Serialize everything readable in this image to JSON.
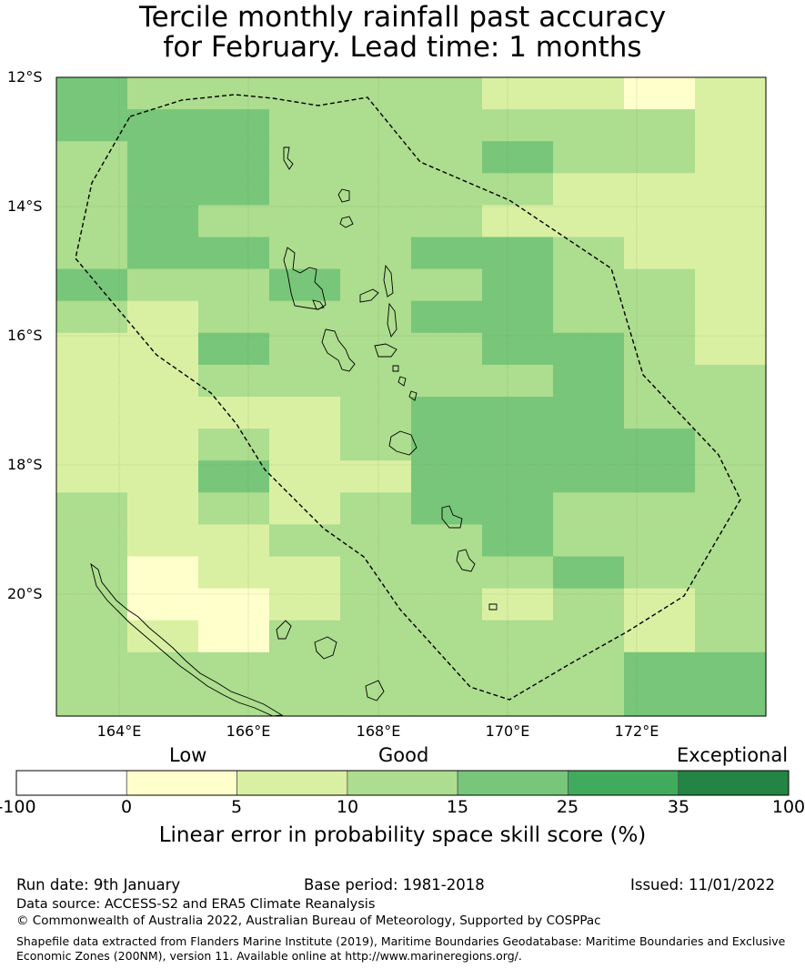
{
  "title": {
    "line1": "Tercile monthly rainfall past accuracy",
    "line2": "for February. Lead time: 1 months"
  },
  "map": {
    "lat_labels": [
      "12°S",
      "14°S",
      "16°S",
      "18°S",
      "20°S"
    ],
    "lon_labels": [
      "164°E",
      "166°E",
      "168°E",
      "170°E",
      "172°E"
    ],
    "extent": {
      "lon_min": 163,
      "lon_max": 174,
      "lat_top": -12,
      "lat_bottom": -21.9
    }
  },
  "colorbar": {
    "categories": [
      "Low",
      "Good",
      "Exceptional"
    ],
    "bounds": [
      "-100",
      "0",
      "5",
      "10",
      "15",
      "25",
      "35",
      "100"
    ],
    "colors": [
      "#ffffff",
      "#ffffcc",
      "#d9f0a3",
      "#addd8e",
      "#78c679",
      "#41ab5d",
      "#238443"
    ],
    "label": "Linear error in probability space skill score (%)"
  },
  "footer": {
    "run_date": "Run date: 9th January",
    "base_period": "Base period: 1981-2018",
    "issued": "Issued: 11/01/2022",
    "data_source": "Data source: ACCESS-S2 and ERA5 Climate Reanalysis",
    "copyright": "© Commonwealth of Australia 2022, Australian Bureau of Meteorology, Supported by COSPPac",
    "shapefile_line1": "Shapefile data extracted from Flanders Marine Institute (2019), Maritime Boundaries Geodatabase: Maritime Boundaries and Exclusive",
    "shapefile_line2": "Economic Zones (200NM), version 11. Available online at http://www.marineregions.org/."
  }
}
